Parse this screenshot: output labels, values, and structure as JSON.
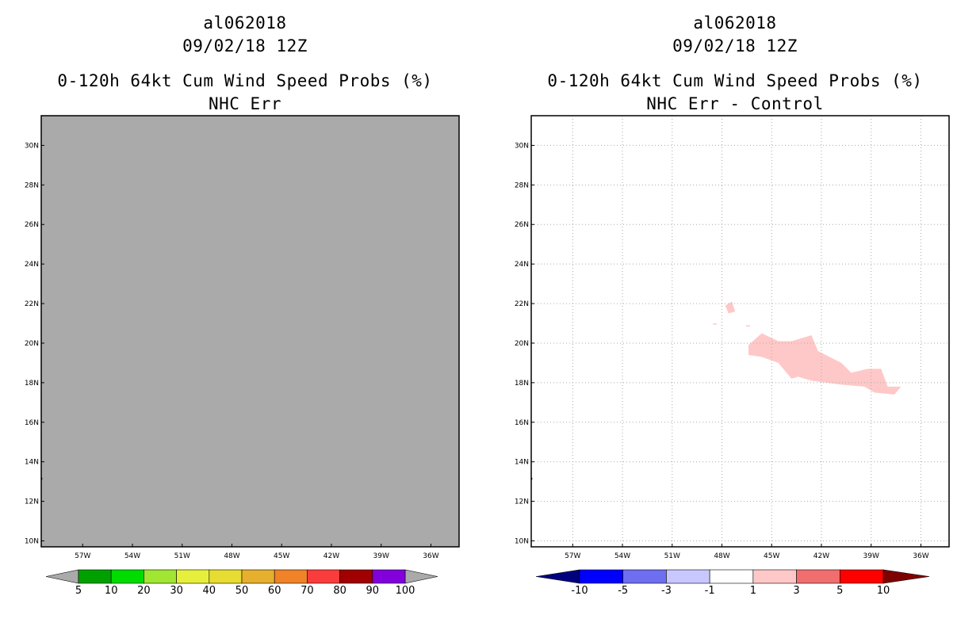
{
  "chart_data": [
    {
      "type": "heatmap",
      "storm_id": "al062018",
      "date": "09/02/18 12Z",
      "title": "0-120h 64kt Cum Wind Speed Probs (%)",
      "subtitle": "NHC Err",
      "x_ticks": [
        "57W",
        "54W",
        "51W",
        "48W",
        "45W",
        "42W",
        "39W",
        "36W"
      ],
      "y_ticks": [
        "30N",
        "28N",
        "26N",
        "24N",
        "22N",
        "20N",
        "18N",
        "16N",
        "14N",
        "12N",
        "10N"
      ],
      "xlim": [
        -59.5,
        -34.3
      ],
      "ylim": [
        9.7,
        31.5
      ],
      "field_fill": "#aaaaaa",
      "grid": false,
      "colorbar": {
        "labels": [
          "5",
          "10",
          "20",
          "30",
          "40",
          "50",
          "60",
          "70",
          "80",
          "90",
          "100"
        ],
        "colors": [
          "#00a000",
          "#00dc00",
          "#a0e632",
          "#e6f03c",
          "#e6dc32",
          "#e6af2d",
          "#f08228",
          "#fa3c3c",
          "#a00000",
          "#8200dc"
        ],
        "end_low": "#aaaaaa",
        "end_high": "#aaaaaa"
      }
    },
    {
      "type": "heatmap",
      "storm_id": "al062018",
      "date": "09/02/18 12Z",
      "title": "0-120h 64kt Cum Wind Speed Probs (%)",
      "subtitle": "NHC Err - Control",
      "x_ticks": [
        "57W",
        "54W",
        "51W",
        "48W",
        "45W",
        "42W",
        "39W",
        "36W"
      ],
      "y_ticks": [
        "30N",
        "28N",
        "26N",
        "24N",
        "22N",
        "20N",
        "18N",
        "16N",
        "14N",
        "12N",
        "10N"
      ],
      "xlim": [
        -59.5,
        -34.3
      ],
      "ylim": [
        9.7,
        31.5
      ],
      "grid": true,
      "region": {
        "name": "1 to 3 percent difference",
        "color": "#ffc8c8",
        "polygon": [
          [
            -46.4,
            19.9
          ],
          [
            -45.6,
            20.5
          ],
          [
            -44.6,
            20.1
          ],
          [
            -43.8,
            20.1
          ],
          [
            -42.6,
            20.4
          ],
          [
            -42.2,
            19.6
          ],
          [
            -40.8,
            19.0
          ],
          [
            -40.2,
            18.5
          ],
          [
            -39.2,
            18.7
          ],
          [
            -38.4,
            18.7
          ],
          [
            -38.0,
            17.8
          ],
          [
            -37.2,
            17.8
          ],
          [
            -37.6,
            17.4
          ],
          [
            -38.8,
            17.5
          ],
          [
            -39.4,
            17.8
          ],
          [
            -40.8,
            17.9
          ],
          [
            -42.6,
            18.1
          ],
          [
            -43.4,
            18.3
          ],
          [
            -43.8,
            18.2
          ],
          [
            -44.6,
            19.0
          ],
          [
            -45.6,
            19.3
          ],
          [
            -46.4,
            19.4
          ]
        ],
        "small_polygon": [
          [
            -47.8,
            21.9
          ],
          [
            -47.4,
            22.1
          ],
          [
            -47.2,
            21.6
          ],
          [
            -47.6,
            21.5
          ]
        ]
      },
      "colorbar": {
        "labels": [
          "-10",
          "-5",
          "-3",
          "-1",
          "1",
          "3",
          "5",
          "10"
        ],
        "colors": [
          "#0000ff",
          "#6e6ef0",
          "#c8c8ff",
          "#ffffff",
          "#ffc8c8",
          "#f06e6e",
          "#ff0000"
        ],
        "end_low": "#00007f",
        "end_high": "#7f0000"
      }
    }
  ]
}
